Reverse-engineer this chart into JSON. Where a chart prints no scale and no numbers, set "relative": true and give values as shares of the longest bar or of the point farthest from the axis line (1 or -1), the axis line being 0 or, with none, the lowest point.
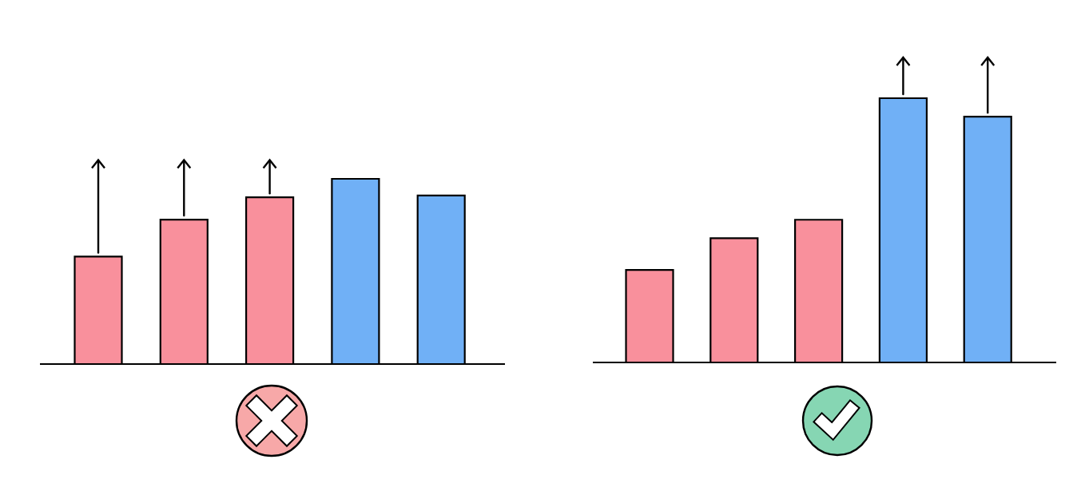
{
  "chart_data": [
    {
      "type": "bar",
      "relative": true,
      "categories": [
        null,
        null,
        null,
        null,
        null
      ],
      "values": [
        0.58,
        0.78,
        0.9,
        1,
        0.91
      ],
      "colors": [
        "#f9909c",
        "#f9909c",
        "#f9909c",
        "#70b0f6",
        "#70b0f6"
      ]
    },
    {
      "type": "bar",
      "relative": true,
      "categories": [
        null,
        null,
        null,
        null,
        null
      ],
      "values": [
        0.35,
        0.47,
        0.54,
        1,
        0.93
      ],
      "colors": [
        "#f9909c",
        "#f9909c",
        "#f9909c",
        "#70b0f6",
        "#70b0f6"
      ]
    }
  ]
}
